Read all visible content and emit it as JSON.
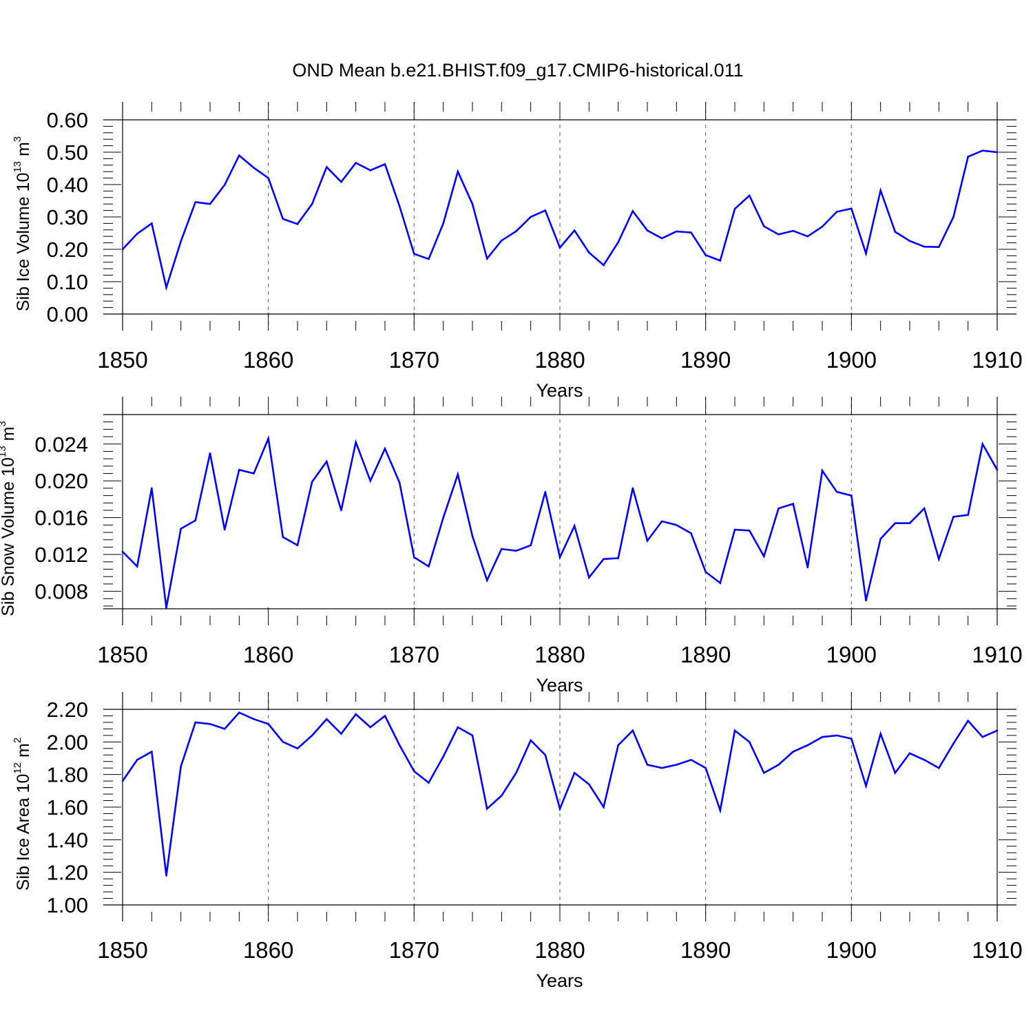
{
  "figure_title": "OND Mean b.e21.BHIST.f09_g17.CMIP6-historical.011",
  "colors": {
    "line": "#0000ff",
    "axis": "#000000",
    "grid": "#555555"
  },
  "chart_data": [
    {
      "type": "line",
      "ylabel_parts": [
        "Sib Ice Volume 10",
        "13",
        " m",
        "3"
      ],
      "xlabel": "Years",
      "xlim": [
        1850,
        1910
      ],
      "ylim": [
        0.0,
        0.6
      ],
      "yticks": [
        0.0,
        0.1,
        0.2,
        0.3,
        0.4,
        0.5,
        0.6
      ],
      "ytick_labels": [
        "0.00",
        "0.10",
        "0.20",
        "0.30",
        "0.40",
        "0.50",
        "0.60"
      ],
      "xticks": [
        1850,
        1860,
        1870,
        1880,
        1890,
        1900,
        1910
      ],
      "xtick_labels": [
        "1850",
        "1860",
        "1870",
        "1880",
        "1890",
        "1900",
        "1910"
      ],
      "grid_x": [
        1860,
        1870,
        1880,
        1890,
        1900
      ],
      "x_start": 1850,
      "values": [
        0.2,
        0.248,
        0.28,
        0.082,
        0.225,
        0.346,
        0.34,
        0.399,
        0.49,
        0.452,
        0.42,
        0.294,
        0.278,
        0.34,
        0.454,
        0.408,
        0.467,
        0.444,
        0.463,
        0.333,
        0.186,
        0.17,
        0.28,
        0.44,
        0.34,
        0.171,
        0.227,
        0.256,
        0.3,
        0.32,
        0.205,
        0.258,
        0.19,
        0.151,
        0.222,
        0.318,
        0.258,
        0.234,
        0.255,
        0.252,
        0.182,
        0.165,
        0.325,
        0.366,
        0.271,
        0.246,
        0.257,
        0.24,
        0.27,
        0.316,
        0.326,
        0.187,
        0.382,
        0.254,
        0.226,
        0.208,
        0.207,
        0.3,
        0.486,
        0.505,
        0.5
      ]
    },
    {
      "type": "line",
      "ylabel_parts": [
        "Sib Snow Volume 10",
        "13",
        " m",
        "3"
      ],
      "xlabel": "Years",
      "xlim": [
        1850,
        1910
      ],
      "ylim": [
        0.0061,
        0.0272
      ],
      "yticks": [
        0.008,
        0.012,
        0.016,
        0.02,
        0.024
      ],
      "ytick_labels": [
        "0.008",
        "0.012",
        "0.016",
        "0.020",
        "0.024"
      ],
      "xticks": [
        1850,
        1860,
        1870,
        1880,
        1890,
        1900,
        1910
      ],
      "xtick_labels": [
        "1850",
        "1860",
        "1870",
        "1880",
        "1890",
        "1900",
        "1910"
      ],
      "grid_x": [
        1870,
        1880,
        1890,
        1900
      ],
      "x_start": 1850,
      "values": [
        0.0123,
        0.0107,
        0.0192,
        0.0062,
        0.0148,
        0.0157,
        0.023,
        0.0147,
        0.0212,
        0.0208,
        0.0246,
        0.0139,
        0.013,
        0.0199,
        0.0221,
        0.0168,
        0.0242,
        0.02,
        0.0235,
        0.0198,
        0.0117,
        0.0107,
        0.016,
        0.0207,
        0.014,
        0.0092,
        0.0126,
        0.0124,
        0.013,
        0.0188,
        0.0117,
        0.0151,
        0.0095,
        0.0115,
        0.0116,
        0.0192,
        0.0135,
        0.0156,
        0.0152,
        0.0143,
        0.0101,
        0.0089,
        0.0147,
        0.0146,
        0.0118,
        0.017,
        0.0175,
        0.0106,
        0.0211,
        0.0188,
        0.0184,
        0.007,
        0.0137,
        0.0154,
        0.0154,
        0.017,
        0.0115,
        0.0161,
        0.0163,
        0.024,
        0.0212
      ]
    },
    {
      "type": "line",
      "ylabel_parts": [
        "Sib Ice Area 10",
        "12",
        " m",
        "2"
      ],
      "xlabel": "Years",
      "xlim": [
        1850,
        1910
      ],
      "ylim": [
        1.0,
        2.2
      ],
      "yticks": [
        1.0,
        1.2,
        1.4,
        1.6,
        1.8,
        2.0,
        2.2
      ],
      "ytick_labels": [
        "1.00",
        "1.20",
        "1.40",
        "1.60",
        "1.80",
        "2.00",
        "2.20"
      ],
      "xticks": [
        1850,
        1860,
        1870,
        1880,
        1890,
        1900,
        1910
      ],
      "xtick_labels": [
        "1850",
        "1860",
        "1870",
        "1880",
        "1890",
        "1900",
        "1910"
      ],
      "grid_x": [
        1860,
        1870,
        1880,
        1890,
        1900
      ],
      "x_start": 1850,
      "values": [
        1.76,
        1.89,
        1.94,
        1.18,
        1.85,
        2.12,
        2.11,
        2.08,
        2.18,
        2.14,
        2.11,
        2.0,
        1.96,
        2.04,
        2.14,
        2.05,
        2.17,
        2.09,
        2.16,
        1.98,
        1.82,
        1.75,
        1.91,
        2.09,
        2.04,
        1.59,
        1.67,
        1.81,
        2.01,
        1.92,
        1.59,
        1.81,
        1.74,
        1.6,
        1.98,
        2.07,
        1.86,
        1.84,
        1.86,
        1.89,
        1.84,
        1.58,
        2.07,
        2.0,
        1.81,
        1.86,
        1.94,
        1.98,
        2.03,
        2.04,
        2.02,
        1.73,
        2.05,
        1.81,
        1.93,
        1.89,
        1.84,
        1.99,
        2.13,
        2.03,
        2.07
      ]
    }
  ]
}
